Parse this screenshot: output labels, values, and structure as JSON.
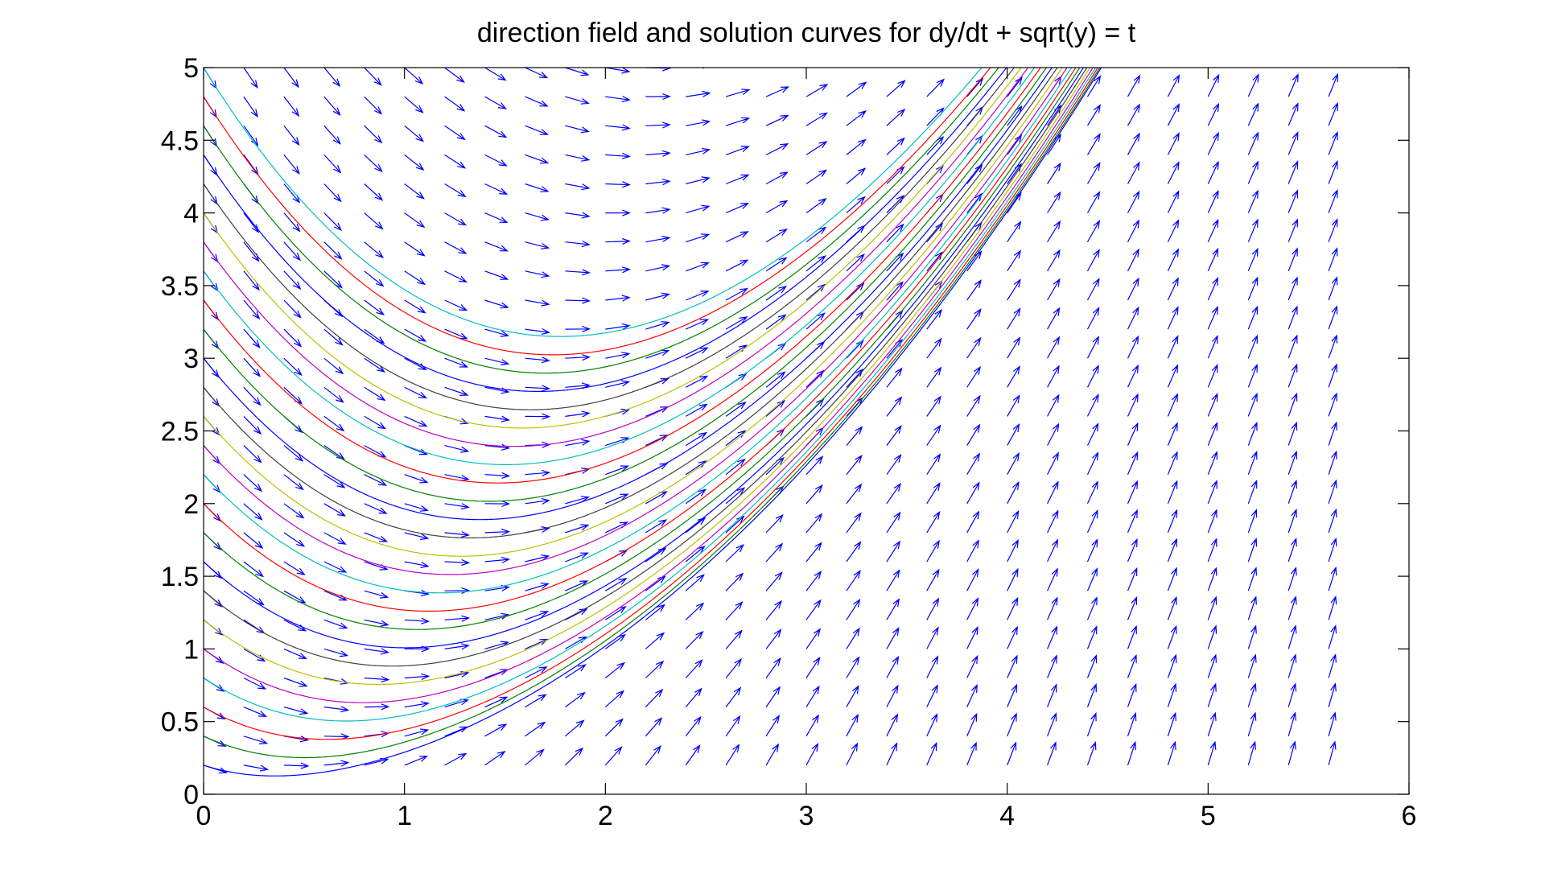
{
  "chart_data": {
    "type": "line",
    "title": "direction field and solution curves for dy/dt + sqrt(y) = t",
    "xlabel": "",
    "ylabel": "",
    "xlim": [
      0,
      6
    ],
    "ylim": [
      0,
      5
    ],
    "x_ticks": [
      "0",
      "1",
      "2",
      "3",
      "4",
      "5",
      "6"
    ],
    "y_ticks": [
      "0",
      "0.5",
      "1",
      "1.5",
      "2",
      "2.5",
      "3",
      "3.5",
      "4",
      "4.5",
      "5"
    ],
    "grid": false,
    "legend": "none",
    "equation": "dy/dt = t - sqrt(y)",
    "direction_field": {
      "t_start": 0,
      "t_step": 0.2,
      "t_count": 29,
      "y_start": 0.2,
      "y_step": 0.2,
      "y_count": 25,
      "color": "#0000ff"
    },
    "solution_curves": {
      "initial_y_at_t0": [
        0.2,
        0.4,
        0.6,
        0.8,
        1.0,
        1.2,
        1.4,
        1.6,
        1.8,
        2.0,
        2.2,
        2.4,
        2.6,
        2.8,
        3.0,
        3.2,
        3.4,
        3.6,
        3.8,
        4.0,
        4.2,
        4.4,
        4.6,
        4.8,
        5.0
      ],
      "colors": [
        "#0000ff",
        "#008000",
        "#ff0000",
        "#00bfbf",
        "#bf00bf",
        "#bfbf00",
        "#404040"
      ]
    },
    "axis_color": "#000000",
    "background": "#ffffff"
  }
}
